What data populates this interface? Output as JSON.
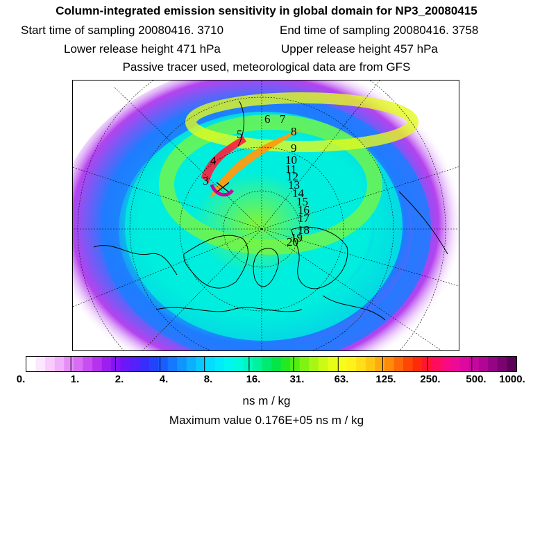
{
  "header": {
    "title": "Column-integrated emission sensitivity in global domain for NP3_20080415",
    "start_time": "Start time of sampling 20080416.  3710",
    "end_time": "End time of sampling 20080416.  3758",
    "lower_height": "Lower release height  471 hPa",
    "upper_height": "Upper release height  457 hPa",
    "tracer_note": "Passive tracer used, meteorological data are from GFS"
  },
  "map": {
    "trajectory_labels": [
      "3",
      "4",
      "5",
      "6",
      "7",
      "8",
      "9",
      "10",
      "11",
      "12",
      "13",
      "14",
      "15",
      "16",
      "17",
      "18",
      "19",
      "20"
    ]
  },
  "colorbar": {
    "tick_labels": [
      "0.",
      "1.",
      "2.",
      "4.",
      "8.",
      "16.",
      "31.",
      "63.",
      "125.",
      "250.",
      "500.",
      "1000."
    ],
    "colors": [
      "#ffffff",
      "#fde6ff",
      "#f8ccfd",
      "#f1b0fb",
      "#e68ef8",
      "#d76cf5",
      "#c84ef2",
      "#b533ef",
      "#9c1ef0",
      "#8414f3",
      "#6c17f7",
      "#5520fa",
      "#3a2cfc",
      "#2441fe",
      "#1a5cff",
      "#1578ff",
      "#1095ff",
      "#0bb0ff",
      "#08c8ff",
      "#05dcff",
      "#00ecfb",
      "#00f7ef",
      "#00fadb",
      "#00f8c0",
      "#00f29c",
      "#00ea72",
      "#03e647",
      "#22e923",
      "#52ee12",
      "#7ff311",
      "#a8f713",
      "#cbfb15",
      "#e6fd17",
      "#f7fd19",
      "#fff21b",
      "#ffdf18",
      "#ffc713",
      "#ffab0f",
      "#ff8b0b",
      "#ff6808",
      "#ff4606",
      "#ff2a0a",
      "#ff1433",
      "#ff0c5c",
      "#fa0a80",
      "#ee0a95",
      "#dd08a0",
      "#c8069f",
      "#b00595",
      "#950485",
      "#7a0370",
      "#5c0259"
    ],
    "units": "ns m / kg",
    "max_value": "Maximum value  0.176E+05 ns m / kg"
  },
  "palette": {
    "outer": "#b543ee",
    "ring_blue": "#1e7cff",
    "ring_cyan": "#00eedd",
    "ring_green": "#7ef53a",
    "ring_yellow": "#e4fa1e",
    "plume_orange": "#ff9a10",
    "plume_red": "#ff1c3c",
    "plume_magenta": "#c9079e"
  }
}
